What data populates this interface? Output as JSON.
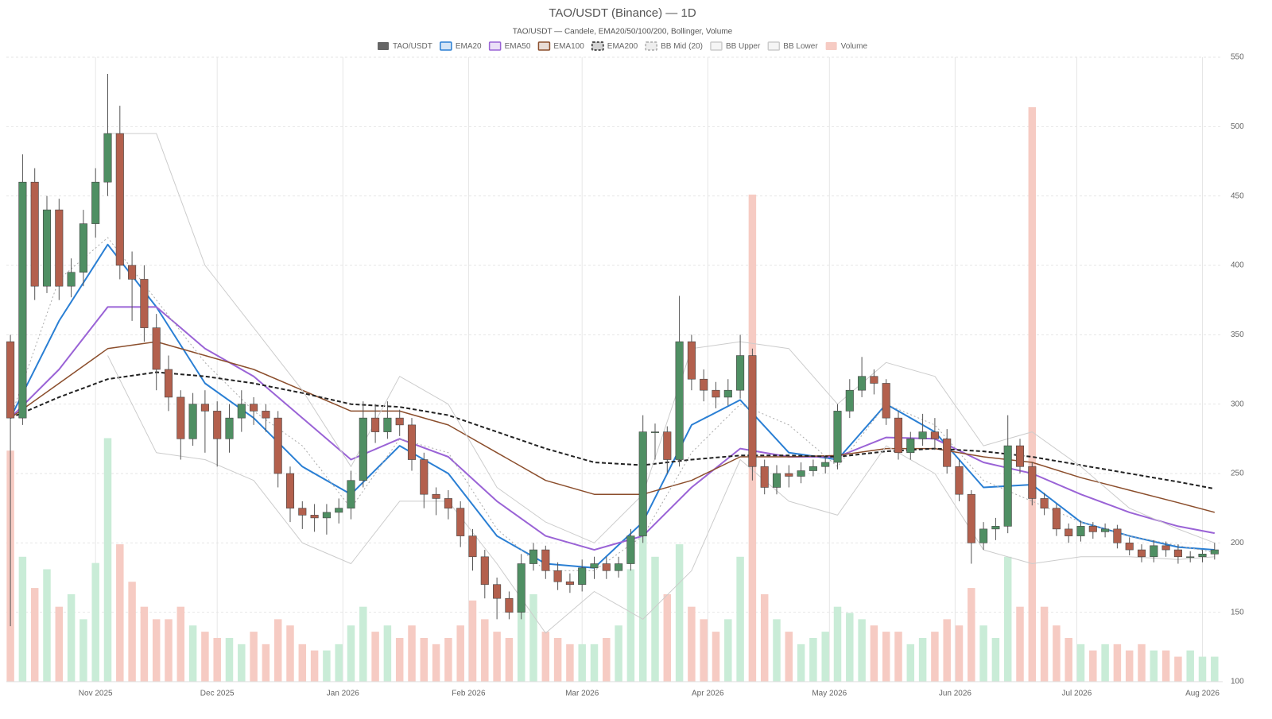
{
  "chart_data": {
    "type": "candlestick",
    "title": "TAO/USDT (Binance) — 1D",
    "subtitle": "TAO/USDT — Candele, EMA20/50/100/200, Bollinger, Volume",
    "candle_name": "TAO/USDT",
    "candle_legend_color": "#666666",
    "up_color": "#4f8f63",
    "down_color": "#b3604d",
    "volume_name": "Volume",
    "volume_up_color": "#c9ecd7",
    "volume_down_color": "#f6cbc3",
    "x": [
      -21,
      -18,
      -15,
      -12,
      -9,
      -6,
      -3,
      0,
      3,
      6,
      9,
      12,
      15,
      18,
      21,
      24,
      27,
      30,
      33,
      36,
      39,
      42,
      45,
      48,
      51,
      54,
      57,
      60,
      63,
      66,
      69,
      72,
      75,
      78,
      81,
      84,
      87,
      90,
      93,
      96,
      99,
      102,
      105,
      108,
      111,
      114,
      117,
      120,
      123,
      126,
      129,
      132,
      135,
      138,
      141,
      144,
      147,
      150,
      153,
      156,
      159,
      162,
      165,
      168,
      171,
      174,
      177,
      180,
      183,
      186,
      189,
      192,
      195,
      198,
      201,
      204,
      207,
      210,
      213,
      216,
      219,
      222,
      225,
      228,
      231,
      234,
      237,
      240,
      243,
      246,
      249,
      252,
      255,
      258,
      261,
      264,
      267,
      270,
      273,
      276
    ],
    "open": [
      345,
      290,
      460,
      385,
      440,
      385,
      395,
      430,
      460,
      495,
      400,
      390,
      355,
      325,
      305,
      275,
      300,
      295,
      275,
      290,
      300,
      295,
      290,
      250,
      225,
      220,
      218,
      222,
      225,
      245,
      290,
      280,
      290,
      285,
      260,
      235,
      232,
      225,
      205,
      190,
      170,
      160,
      150,
      185,
      195,
      180,
      172,
      170,
      182,
      185,
      180,
      185,
      205,
      280,
      280,
      260,
      345,
      318,
      310,
      305,
      310,
      335,
      255,
      240,
      250,
      248,
      252,
      255,
      258,
      295,
      310,
      320,
      315,
      290,
      265,
      275,
      280,
      275,
      255,
      235,
      200,
      210,
      212,
      270,
      255,
      232,
      225,
      210,
      205,
      212,
      208,
      210,
      200,
      195,
      190,
      198,
      195,
      190,
      190,
      192
    ],
    "high": [
      350,
      480,
      470,
      450,
      448,
      405,
      440,
      470,
      538,
      515,
      410,
      400,
      365,
      335,
      310,
      308,
      310,
      302,
      300,
      310,
      305,
      300,
      295,
      255,
      230,
      228,
      228,
      232,
      252,
      302,
      300,
      302,
      296,
      290,
      265,
      240,
      238,
      230,
      210,
      195,
      175,
      165,
      192,
      200,
      198,
      186,
      178,
      188,
      190,
      190,
      190,
      210,
      292,
      286,
      284,
      378,
      350,
      325,
      316,
      318,
      350,
      340,
      260,
      256,
      256,
      258,
      260,
      262,
      300,
      318,
      334,
      325,
      318,
      295,
      280,
      293,
      290,
      282,
      260,
      238,
      215,
      218,
      292,
      275,
      258,
      236,
      228,
      214,
      216,
      215,
      214,
      213,
      204,
      199,
      202,
      201,
      199,
      194,
      195,
      200
    ],
    "low": [
      140,
      285,
      375,
      380,
      375,
      377,
      385,
      420,
      450,
      390,
      360,
      345,
      310,
      295,
      260,
      270,
      265,
      255,
      265,
      280,
      285,
      280,
      240,
      215,
      210,
      208,
      206,
      214,
      217,
      240,
      272,
      275,
      277,
      252,
      225,
      220,
      217,
      197,
      180,
      160,
      145,
      145,
      145,
      180,
      174,
      166,
      164,
      165,
      174,
      174,
      175,
      180,
      200,
      260,
      250,
      255,
      310,
      302,
      297,
      299,
      304,
      245,
      235,
      235,
      240,
      243,
      248,
      250,
      253,
      290,
      305,
      307,
      285,
      260,
      260,
      270,
      267,
      250,
      230,
      185,
      195,
      202,
      207,
      250,
      227,
      220,
      205,
      200,
      201,
      203,
      204,
      196,
      191,
      186,
      186,
      190,
      185,
      186,
      186,
      188
    ],
    "close": [
      290,
      460,
      385,
      440,
      385,
      395,
      430,
      460,
      495,
      400,
      390,
      355,
      325,
      305,
      275,
      300,
      295,
      275,
      290,
      300,
      295,
      290,
      250,
      225,
      220,
      218,
      222,
      225,
      245,
      290,
      280,
      290,
      285,
      260,
      235,
      232,
      225,
      205,
      190,
      170,
      160,
      150,
      185,
      195,
      180,
      172,
      170,
      182,
      185,
      180,
      185,
      205,
      280,
      280,
      260,
      345,
      318,
      310,
      305,
      310,
      335,
      255,
      240,
      250,
      248,
      252,
      255,
      258,
      295,
      310,
      320,
      315,
      290,
      265,
      275,
      280,
      275,
      255,
      235,
      200,
      210,
      212,
      270,
      255,
      232,
      225,
      210,
      205,
      212,
      208,
      210,
      200,
      195,
      190,
      198,
      195,
      190,
      190,
      192,
      195
    ],
    "volume": [
      37,
      20,
      15,
      18,
      12,
      14,
      10,
      19,
      39,
      22,
      16,
      12,
      10,
      10,
      12,
      9,
      8,
      7,
      7,
      6,
      8,
      6,
      10,
      9,
      6,
      5,
      5,
      6,
      9,
      12,
      8,
      9,
      7,
      9,
      7,
      6,
      7,
      9,
      13,
      10,
      8,
      7,
      12,
      14,
      8,
      7,
      6,
      6,
      6,
      7,
      9,
      18,
      25,
      20,
      14,
      22,
      12,
      10,
      8,
      10,
      20,
      78,
      14,
      10,
      8,
      6,
      7,
      8,
      12,
      11,
      10,
      9,
      8,
      8,
      6,
      7,
      8,
      10,
      9,
      15,
      9,
      7,
      20,
      12,
      92,
      12,
      9,
      7,
      6,
      5,
      6,
      6,
      5,
      6,
      5,
      5,
      4,
      5,
      4,
      4
    ],
    "vlim": [
      0,
      100
    ],
    "lines": [
      {
        "name": "EMA20",
        "color": "#2a7fd4",
        "width": 2,
        "dash": false,
        "x": [
          -21,
          -9,
          3,
          15,
          27,
          39,
          51,
          63,
          75,
          87,
          99,
          111,
          123,
          135,
          147,
          159,
          171,
          183,
          195,
          207,
          219,
          231,
          243,
          255,
          267,
          276
        ],
        "values": [
          290,
          360,
          415,
          370,
          315,
          290,
          255,
          235,
          270,
          250,
          205,
          185,
          182,
          215,
          285,
          303,
          265,
          260,
          300,
          280,
          240,
          242,
          215,
          205,
          197,
          195
        ]
      },
      {
        "name": "EMA50",
        "color": "#9a63d6",
        "width": 2,
        "dash": false,
        "x": [
          -21,
          -9,
          3,
          15,
          27,
          39,
          51,
          63,
          75,
          87,
          99,
          111,
          123,
          135,
          147,
          159,
          171,
          183,
          195,
          207,
          219,
          231,
          243,
          255,
          267,
          276
        ],
        "values": [
          290,
          325,
          370,
          370,
          340,
          320,
          290,
          260,
          275,
          262,
          230,
          205,
          195,
          205,
          240,
          268,
          262,
          262,
          276,
          275,
          258,
          250,
          235,
          222,
          212,
          207
        ]
      },
      {
        "name": "EMA100",
        "color": "#8b4e2c",
        "width": 1.5,
        "dash": false,
        "x": [
          -21,
          -9,
          3,
          15,
          27,
          39,
          51,
          63,
          75,
          87,
          99,
          111,
          123,
          135,
          147,
          159,
          171,
          183,
          195,
          207,
          219,
          231,
          243,
          255,
          267,
          276
        ],
        "values": [
          290,
          315,
          340,
          345,
          335,
          325,
          310,
          295,
          295,
          285,
          265,
          245,
          235,
          235,
          245,
          262,
          262,
          263,
          268,
          268,
          262,
          258,
          247,
          238,
          229,
          222
        ]
      },
      {
        "name": "EMA200",
        "color": "#222222",
        "width": 2,
        "dash": true,
        "x": [
          -21,
          -9,
          3,
          15,
          27,
          39,
          51,
          63,
          75,
          87,
          99,
          111,
          123,
          135,
          147,
          159,
          171,
          183,
          195,
          207,
          219,
          231,
          243,
          255,
          267,
          276
        ],
        "values": [
          290,
          305,
          318,
          323,
          320,
          315,
          308,
          300,
          298,
          292,
          280,
          268,
          258,
          256,
          260,
          263,
          263,
          262,
          266,
          268,
          266,
          262,
          256,
          250,
          244,
          239
        ]
      },
      {
        "name": "BB Mid (20)",
        "color": "#aaaaaa",
        "width": 1,
        "dash": true,
        "x": [
          -21,
          -9,
          3,
          15,
          27,
          39,
          51,
          63,
          75,
          87,
          99,
          111,
          123,
          135,
          147,
          159,
          171,
          183,
          195,
          207,
          219,
          231,
          243,
          255,
          267,
          276
        ],
        "values": [
          290,
          390,
          420,
          375,
          330,
          295,
          270,
          225,
          275,
          265,
          210,
          180,
          180,
          205,
          265,
          300,
          285,
          255,
          300,
          285,
          245,
          230,
          215,
          205,
          198,
          193
        ]
      },
      {
        "name": "BB Upper",
        "color": "#cccccc",
        "width": 1,
        "dash": false,
        "x": [
          -21,
          -9,
          3,
          15,
          27,
          39,
          51,
          63,
          75,
          87,
          99,
          111,
          123,
          135,
          147,
          159,
          171,
          183,
          195,
          207,
          219,
          231,
          243,
          255,
          267,
          276
        ],
        "values": [
          null,
          null,
          495,
          495,
          400,
          355,
          310,
          255,
          320,
          300,
          240,
          215,
          200,
          235,
          340,
          345,
          340,
          300,
          330,
          320,
          270,
          280,
          255,
          225,
          210,
          200
        ]
      },
      {
        "name": "BB Lower",
        "color": "#cccccc",
        "width": 1,
        "dash": false,
        "x": [
          -21,
          -9,
          3,
          15,
          27,
          39,
          51,
          63,
          75,
          87,
          99,
          111,
          123,
          135,
          147,
          159,
          171,
          183,
          195,
          207,
          219,
          231,
          243,
          255,
          267,
          276
        ],
        "values": [
          null,
          null,
          335,
          265,
          260,
          245,
          200,
          185,
          230,
          230,
          185,
          135,
          165,
          145,
          180,
          260,
          230,
          220,
          270,
          250,
          195,
          185,
          190,
          190,
          188,
          190
        ]
      }
    ],
    "xlim": [
      -22,
      278
    ],
    "xticks": [
      {
        "value": 0,
        "label": "Nov 2025"
      },
      {
        "value": 30,
        "label": "Dec 2025"
      },
      {
        "value": 61,
        "label": "Jan 2026"
      },
      {
        "value": 92,
        "label": "Feb 2026"
      },
      {
        "value": 120,
        "label": "Mar 2026"
      },
      {
        "value": 151,
        "label": "Apr 2026"
      },
      {
        "value": 181,
        "label": "May 2026"
      },
      {
        "value": 212,
        "label": "Jun 2026"
      },
      {
        "value": 242,
        "label": "Jul 2026"
      },
      {
        "value": 273,
        "label": "Aug 2026"
      }
    ],
    "ylim": [
      100,
      550
    ],
    "yticks": [
      100,
      150,
      200,
      250,
      300,
      350,
      400,
      450,
      500,
      550
    ],
    "grid": true
  }
}
